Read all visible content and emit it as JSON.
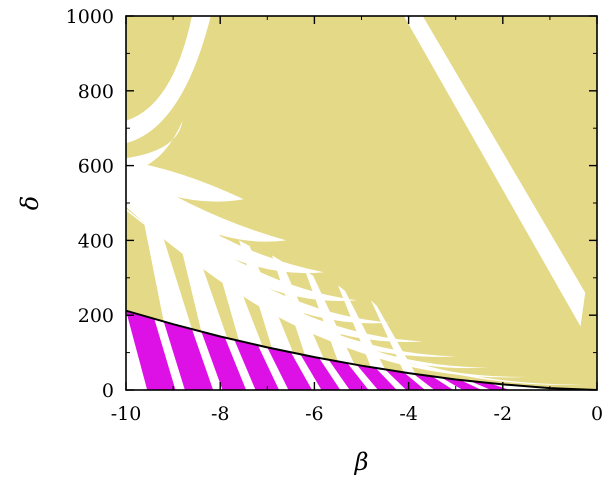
{
  "chart_data": {
    "type": "area",
    "title": "",
    "xlabel": "β",
    "ylabel": "δ",
    "xlim": [
      -10,
      0
    ],
    "ylim": [
      0,
      1000
    ],
    "x_ticks": [
      -10,
      -8,
      -6,
      -4,
      -2,
      0
    ],
    "x_tick_labels": [
      "-10",
      "-8",
      "-6",
      "-4",
      "-2",
      "0"
    ],
    "y_ticks": [
      0,
      200,
      400,
      600,
      800,
      1000
    ],
    "y_tick_labels": [
      "0",
      "200",
      "400",
      "600",
      "800",
      "1000"
    ],
    "grid": false,
    "colors": {
      "background_region": "#e4d987",
      "lower_region": "#dd10e6",
      "gap_region": "#ffffff",
      "boundary": "#000000"
    },
    "boundary_curve": {
      "x": [
        -10,
        -9,
        -8,
        -7,
        -6,
        -5,
        -4,
        -3,
        -2,
        -1,
        0
      ],
      "y": [
        212,
        176,
        143,
        114,
        88,
        65,
        45,
        28,
        15,
        5,
        0
      ]
    },
    "white_fans": [
      {
        "from": [
          -10,
          570
        ],
        "to": [
          -7.5,
          510
        ],
        "width": 40
      },
      {
        "from": [
          -10,
          560
        ],
        "to": [
          -6.6,
          400
        ],
        "width": 34
      },
      {
        "from": [
          -10,
          550
        ],
        "to": [
          -5.8,
          315
        ],
        "width": 30
      },
      {
        "from": [
          -10,
          540
        ],
        "to": [
          -5.1,
          240
        ],
        "width": 26
      },
      {
        "from": [
          -10,
          530
        ],
        "to": [
          -4.4,
          180
        ],
        "width": 22
      },
      {
        "from": [
          -10,
          520
        ],
        "to": [
          -3.7,
          130
        ],
        "width": 18
      },
      {
        "from": [
          -10,
          510
        ],
        "to": [
          -3.0,
          90
        ],
        "width": 14
      },
      {
        "from": [
          -10,
          500
        ],
        "to": [
          -2.3,
          60
        ],
        "width": 11
      },
      {
        "from": [
          -10,
          490
        ],
        "to": [
          -1.5,
          35
        ],
        "width": 8
      },
      {
        "from": [
          -10,
          480
        ],
        "to": [
          -0.2,
          15
        ],
        "width": 5
      }
    ],
    "white_fingers": [
      {
        "top": [
          -9.7,
          500
        ],
        "bottom": [
          -9.2,
          60
        ],
        "width": 0.6
      },
      {
        "top": [
          -9.0,
          470
        ],
        "bottom": [
          -8.4,
          45
        ],
        "width": 0.55
      },
      {
        "top": [
          -8.3,
          440
        ],
        "bottom": [
          -7.6,
          35
        ],
        "width": 0.5
      },
      {
        "top": [
          -7.6,
          400
        ],
        "bottom": [
          -6.9,
          28
        ],
        "width": 0.45
      },
      {
        "top": [
          -6.9,
          360
        ],
        "bottom": [
          -6.2,
          22
        ],
        "width": 0.4
      },
      {
        "top": [
          -6.2,
          320
        ],
        "bottom": [
          -5.5,
          18
        ],
        "width": 0.35
      },
      {
        "top": [
          -5.5,
          280
        ],
        "bottom": [
          -4.8,
          14
        ],
        "width": 0.3
      },
      {
        "top": [
          -4.8,
          240
        ],
        "bottom": [
          -4.1,
          10
        ],
        "width": 0.25
      }
    ],
    "magenta_bands": [
      {
        "x": [
          -10,
          -9.4
        ],
        "top": 212
      },
      {
        "x": [
          -9.2,
          -8.6
        ],
        "top": 185
      },
      {
        "x": [
          -8.4,
          -7.9
        ],
        "top": 160
      },
      {
        "x": [
          -7.7,
          -7.2
        ],
        "top": 135
      },
      {
        "x": [
          -7.0,
          -6.5
        ],
        "top": 112
      },
      {
        "x": [
          -6.3,
          -5.9
        ],
        "top": 95
      },
      {
        "x": [
          -5.7,
          -5.3
        ],
        "top": 78
      },
      {
        "x": [
          -5.1,
          -4.7
        ],
        "top": 64
      },
      {
        "x": [
          -4.5,
          -4.1
        ],
        "top": 52
      },
      {
        "x": [
          -3.9,
          -3.5
        ],
        "top": 40
      },
      {
        "x": [
          -3.3,
          -2.9
        ],
        "top": 30
      },
      {
        "x": [
          -2.7,
          -2.3
        ],
        "top": 20
      }
    ]
  }
}
